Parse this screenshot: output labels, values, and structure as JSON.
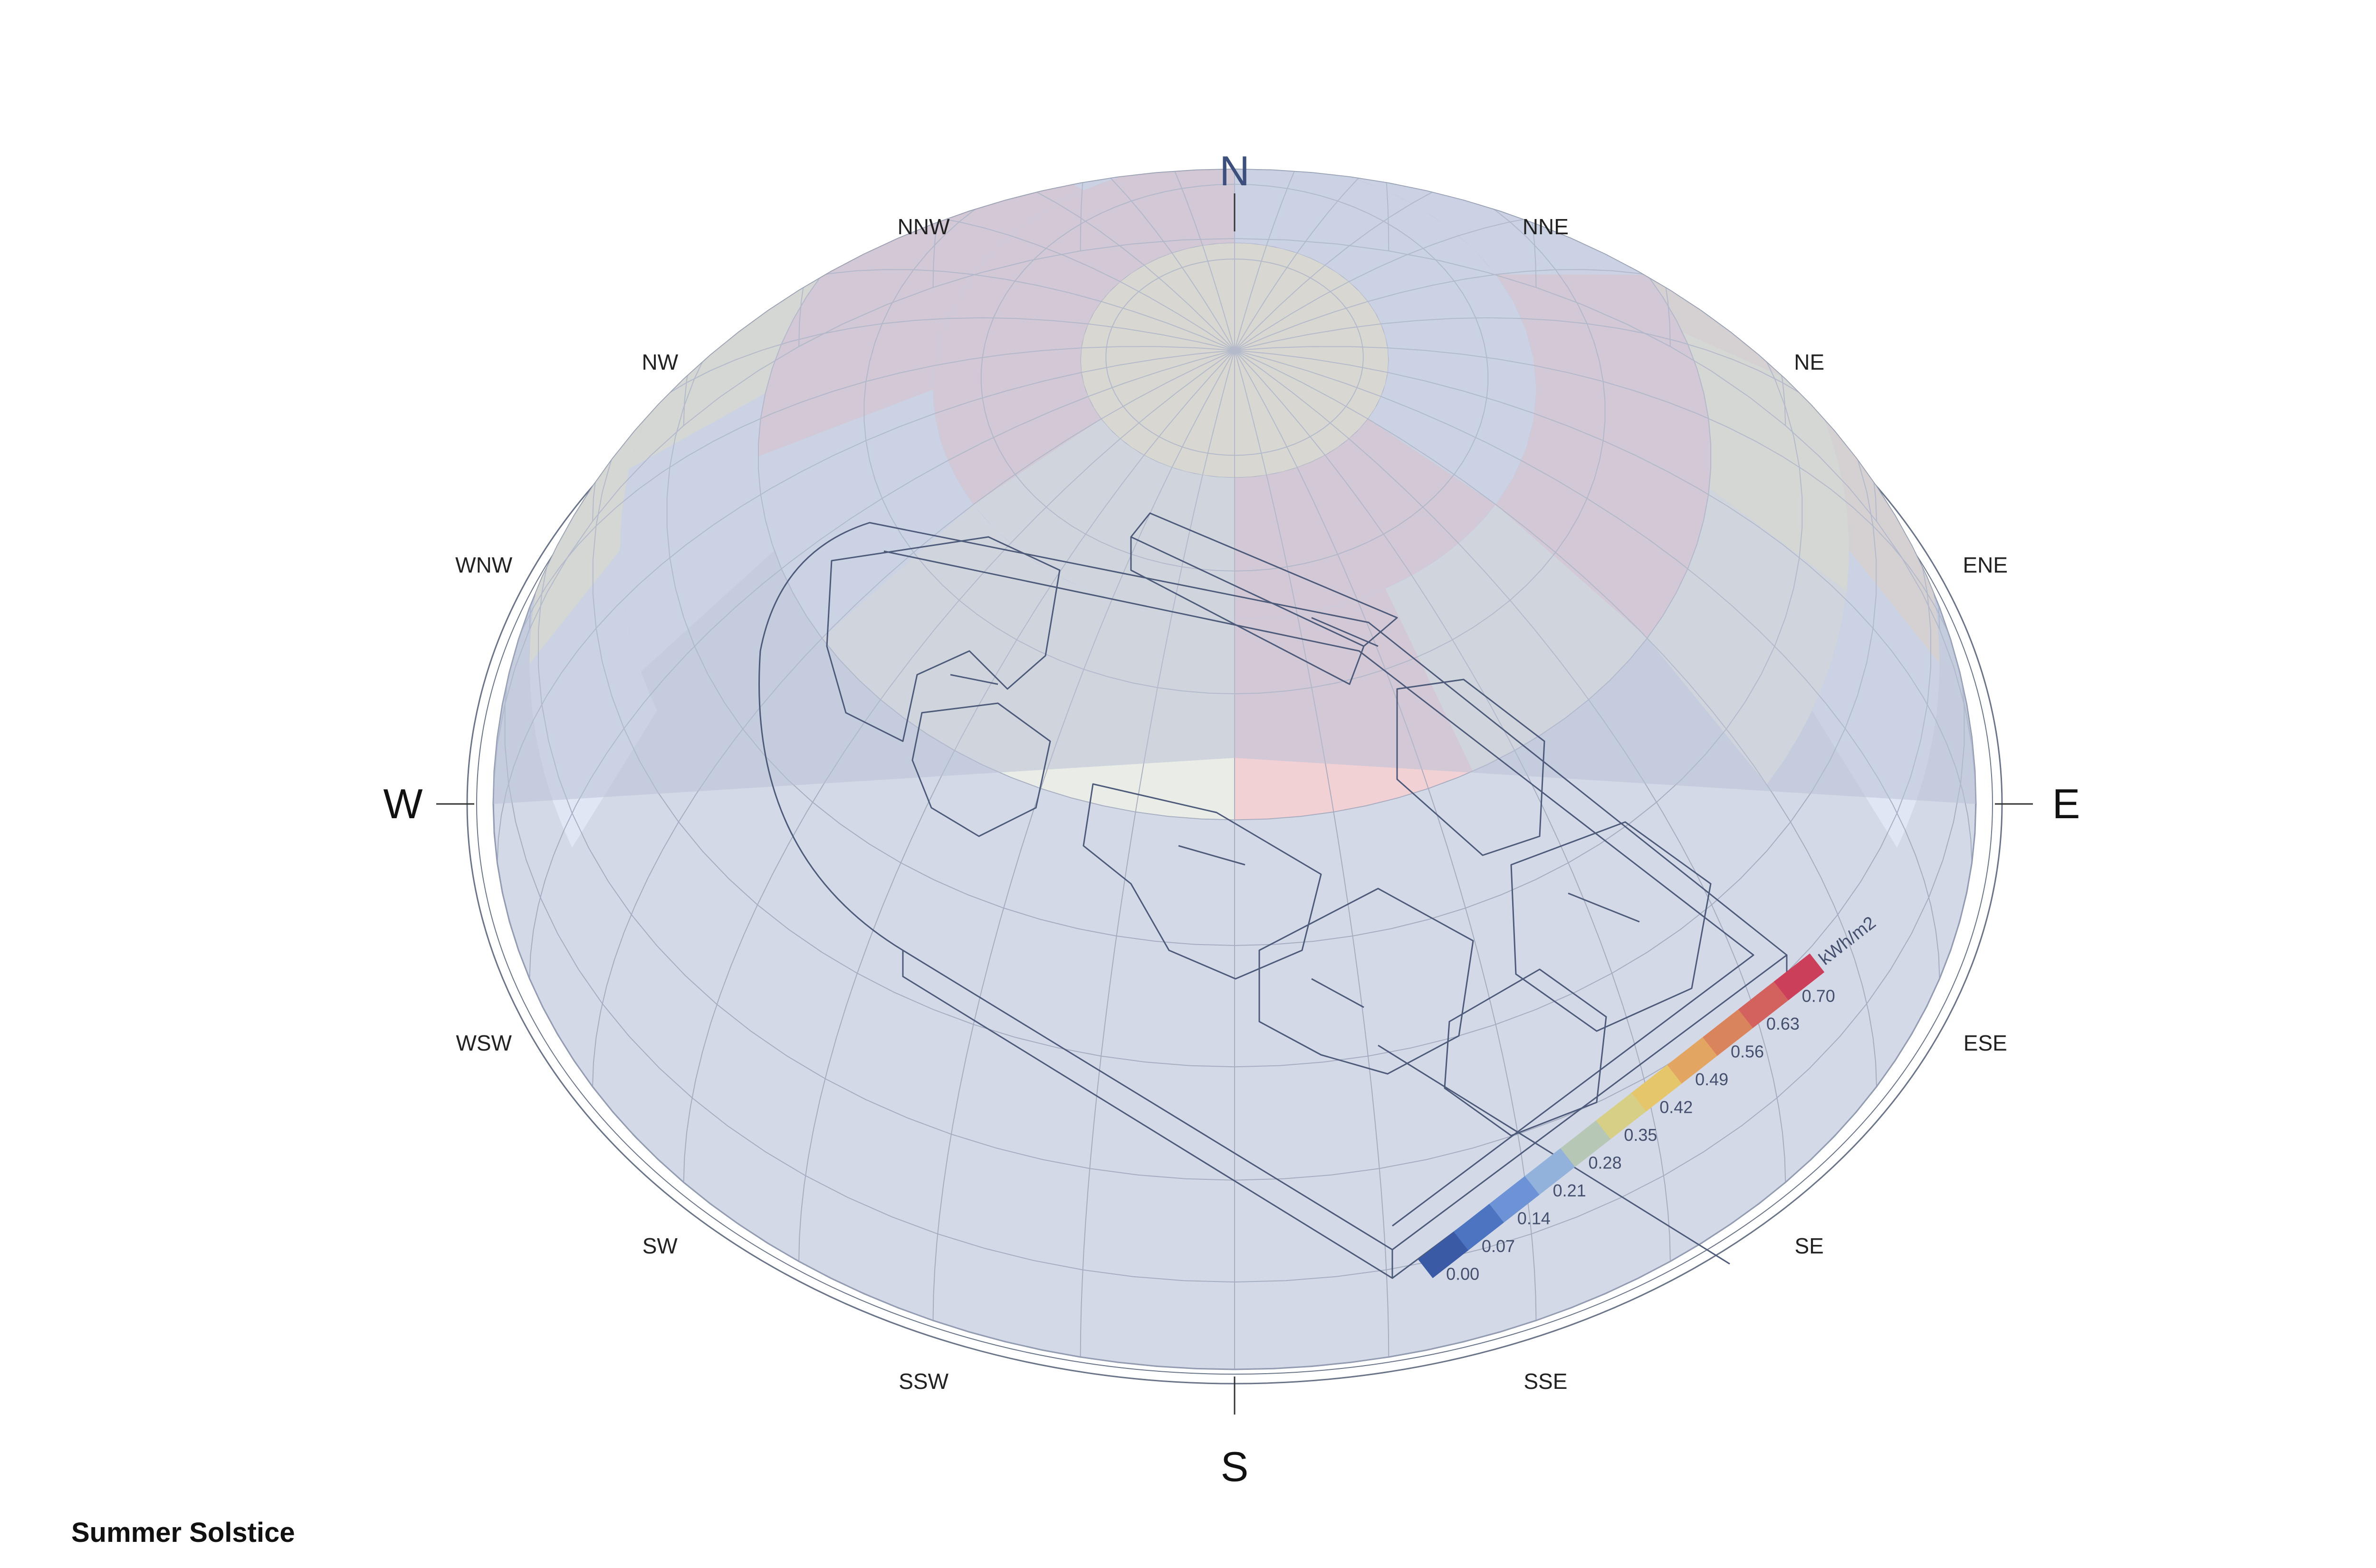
{
  "caption": "Summer Solstice",
  "compass": {
    "major": [
      {
        "key": "N",
        "label": "N",
        "deg": 0
      },
      {
        "key": "E",
        "label": "E",
        "deg": 90
      },
      {
        "key": "S",
        "label": "S",
        "deg": 180
      },
      {
        "key": "W",
        "label": "W",
        "deg": 270
      }
    ],
    "minor": [
      {
        "key": "NNE",
        "label": "NNE",
        "deg": 22.5
      },
      {
        "key": "NE",
        "label": "NE",
        "deg": 45
      },
      {
        "key": "ENE",
        "label": "ENE",
        "deg": 67.5
      },
      {
        "key": "ESE",
        "label": "ESE",
        "deg": 112.5
      },
      {
        "key": "SE",
        "label": "SE",
        "deg": 135
      },
      {
        "key": "SSE",
        "label": "SSE",
        "deg": 157.5
      },
      {
        "key": "SSW",
        "label": "SSW",
        "deg": 202.5
      },
      {
        "key": "SW",
        "label": "SW",
        "deg": 225
      },
      {
        "key": "WSW",
        "label": "WSW",
        "deg": 247.5
      },
      {
        "key": "WNW",
        "label": "WNW",
        "deg": 292.5
      },
      {
        "key": "NW",
        "label": "NW",
        "deg": 315
      },
      {
        "key": "NNW",
        "label": "NNW",
        "deg": 337.5
      }
    ]
  },
  "legend": {
    "unit": "kWh/m2",
    "ticks": [
      "0.00",
      "0.07",
      "0.14",
      "0.21",
      "0.28",
      "0.35",
      "0.42",
      "0.49",
      "0.56",
      "0.63",
      "0.70"
    ],
    "colors": [
      "#3a5aa6",
      "#4d74c0",
      "#6d93d6",
      "#92b2dc",
      "#b7c7b5",
      "#d8cf86",
      "#e6c66a",
      "#e3a562",
      "#d9845d",
      "#d3625f",
      "#cc3f5a"
    ]
  },
  "sky_patch_colors": {
    "zenith": "#fdf2cf",
    "red": "#f6cfd0",
    "pale_blue": "#e2e8f6",
    "pale_green": "#edf0e6",
    "yellow": "#fdf5cf",
    "orange": "#fbe6cd"
  }
}
